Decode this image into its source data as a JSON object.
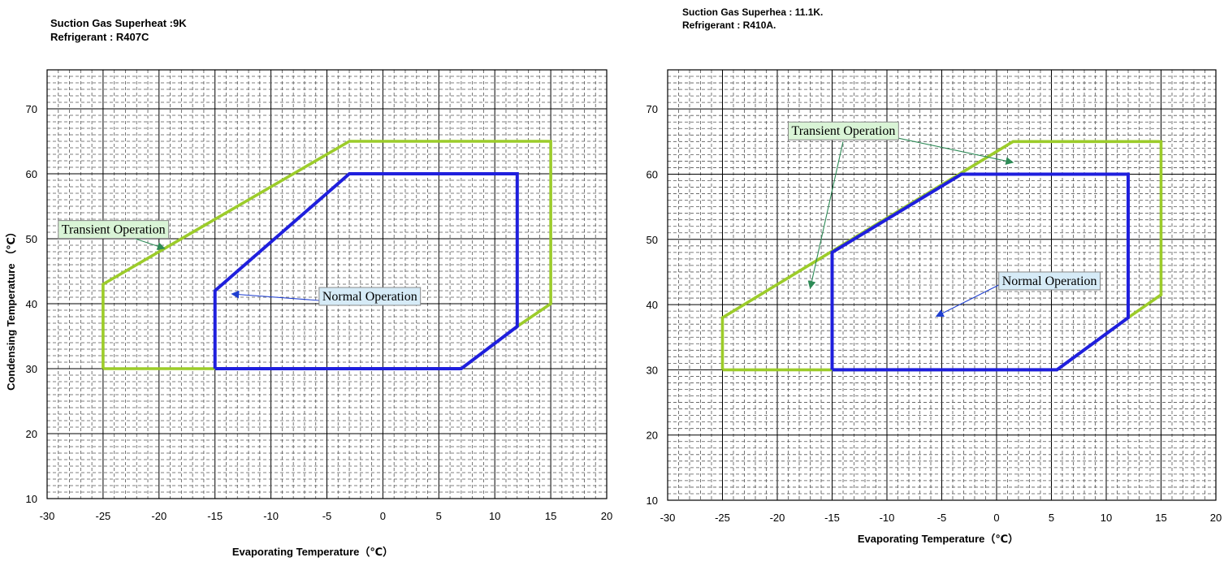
{
  "colors": {
    "normal": "#1f1fdd",
    "transient": "#9ccc2a",
    "transient_box": "#d9f4d6",
    "normal_box": "#d6ebf7",
    "transient_arrow": "#2e8b57",
    "normal_arrow": "#1f3fd0"
  },
  "chart_data": [
    {
      "type": "line",
      "header_line1": "Suction Gas Superheat :9K",
      "header_line2": "Refrigerant : R407C",
      "xlabel": "Evaporating Temperature（℃）",
      "ylabel": "Condensing Temperature （℃）",
      "xlim": [
        -30,
        20
      ],
      "ylim": [
        10,
        76
      ],
      "xticks": [
        -30,
        -25,
        -20,
        -15,
        -10,
        -5,
        0,
        5,
        10,
        15,
        20
      ],
      "yticks": [
        10,
        20,
        30,
        40,
        50,
        60,
        70
      ],
      "grid": true,
      "series": [
        {
          "name": "Transient Operation",
          "color": "#9ccc2a",
          "points": [
            [
              -25,
              30
            ],
            [
              -25,
              43
            ],
            [
              -3,
              65
            ],
            [
              15,
              65
            ],
            [
              15,
              40
            ],
            [
              12,
              36.5
            ],
            [
              7,
              30
            ],
            [
              -25,
              30
            ]
          ]
        },
        {
          "name": "Normal Operation",
          "color": "#1f1fdd",
          "points": [
            [
              -15,
              30
            ],
            [
              -15,
              42
            ],
            [
              -3,
              60
            ],
            [
              12,
              60
            ],
            [
              12,
              36.5
            ],
            [
              7,
              30
            ],
            [
              -15,
              30
            ]
          ]
        }
      ],
      "annotations": [
        {
          "text": "Transient Operation",
          "kind": "transient",
          "box_at": [
            -29,
            52.8
          ],
          "arrow_from": [
            -23,
            50.5
          ],
          "arrow_to": [
            -19.5,
            48.5
          ]
        },
        {
          "text": "Normal Operation",
          "kind": "normal",
          "box_at": [
            -5.7,
            42.5
          ],
          "arrow_from": [
            -5.7,
            40.5
          ],
          "arrow_to": [
            -13.5,
            41.5
          ]
        }
      ]
    },
    {
      "type": "line",
      "header_line1": "Suction Gas Superhea : 11.1K.",
      "header_line2": "Refrigerant : R410A.",
      "xlabel": "Evaporating Temperature（℃）",
      "ylabel": "",
      "xlim": [
        -30,
        20
      ],
      "ylim": [
        10,
        76
      ],
      "xticks": [
        -30,
        -25,
        -20,
        -15,
        -10,
        -5,
        0,
        5,
        10,
        15,
        20
      ],
      "yticks": [
        10,
        20,
        30,
        40,
        50,
        60,
        70
      ],
      "grid": true,
      "series": [
        {
          "name": "Transient Operation",
          "color": "#9ccc2a",
          "points": [
            [
              -25,
              30
            ],
            [
              -25,
              38
            ],
            [
              1.5,
              65
            ],
            [
              15,
              65
            ],
            [
              15,
              41.5
            ],
            [
              12,
              38
            ],
            [
              5.5,
              30
            ],
            [
              -25,
              30
            ]
          ]
        },
        {
          "name": "Normal Operation",
          "color": "#1f1fdd",
          "points": [
            [
              -15,
              30
            ],
            [
              -15,
              48
            ],
            [
              -3.2,
              60
            ],
            [
              12,
              60
            ],
            [
              12,
              38
            ],
            [
              5.5,
              30
            ],
            [
              -15,
              30
            ]
          ]
        }
      ],
      "annotations": [
        {
          "text": "Transient Operation",
          "kind": "transient",
          "box_at": [
            -19,
            68
          ],
          "arrow_from": [
            -10.3,
            66
          ],
          "arrow_to": [
            1.5,
            61.8
          ]
        },
        {
          "text": "Transient Operation",
          "kind": "transient",
          "box_at": [
            null,
            null
          ],
          "arrow_from": [
            -14,
            65
          ],
          "arrow_to": [
            -17,
            42.5
          ]
        },
        {
          "text": "Normal Operation",
          "kind": "normal",
          "box_at": [
            0.2,
            45
          ],
          "arrow_from": [
            0.2,
            43
          ],
          "arrow_to": [
            -5.5,
            38.2
          ]
        }
      ]
    }
  ]
}
